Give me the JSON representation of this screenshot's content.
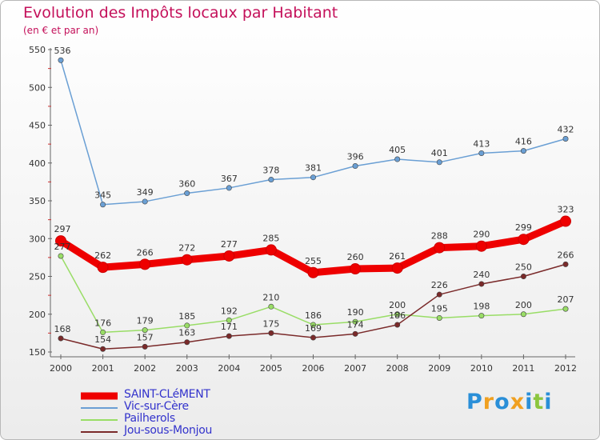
{
  "header": {
    "title": "Evolution des Impôts locaux par Habitant",
    "subtitle": "(en € et par an)"
  },
  "logo": {
    "text": "Proxiti",
    "letters": [
      {
        "ch": "P",
        "color": "#2a8fd8"
      },
      {
        "ch": "r",
        "color": "#f0a020"
      },
      {
        "ch": "o",
        "color": "#2a8fd8"
      },
      {
        "ch": "x",
        "color": "#f0a020"
      },
      {
        "ch": "i",
        "color": "#2a8fd8"
      },
      {
        "ch": "t",
        "color": "#8cc63f"
      },
      {
        "ch": "i",
        "color": "#2a8fd8"
      }
    ]
  },
  "chart_data": {
    "type": "line",
    "title": "Evolution des Impôts locaux par Habitant",
    "subtitle": "(en € et par an)",
    "x": [
      "2000",
      "2001",
      "2002",
      "2003",
      "2004",
      "2005",
      "2006",
      "2007",
      "2008",
      "2009",
      "2010",
      "2011",
      "2012"
    ],
    "ylim": [
      150,
      550
    ],
    "yticks": [
      150,
      200,
      250,
      300,
      350,
      400,
      450,
      500,
      550
    ],
    "grid": false,
    "legend_position": "bottom-left",
    "series": [
      {
        "name": "SAINT-CLéMENT",
        "color": "#ee0000",
        "emphasis": true,
        "values": [
          297,
          262,
          266,
          272,
          277,
          285,
          255,
          260,
          261,
          288,
          290,
          299,
          323
        ]
      },
      {
        "name": "Vic-sur-Cère",
        "color": "#6a9fd4",
        "emphasis": false,
        "values": [
          536,
          345,
          349,
          360,
          367,
          378,
          381,
          396,
          405,
          401,
          413,
          416,
          432
        ]
      },
      {
        "name": "Pailherols",
        "color": "#99dd66",
        "emphasis": false,
        "values": [
          277,
          176,
          179,
          185,
          192,
          210,
          186,
          190,
          200,
          195,
          198,
          200,
          207
        ]
      },
      {
        "name": "Jou-sous-Monjou",
        "color": "#7a2a2a",
        "emphasis": false,
        "values": [
          168,
          154,
          157,
          163,
          171,
          175,
          169,
          174,
          186,
          226,
          240,
          250,
          266
        ]
      }
    ]
  }
}
